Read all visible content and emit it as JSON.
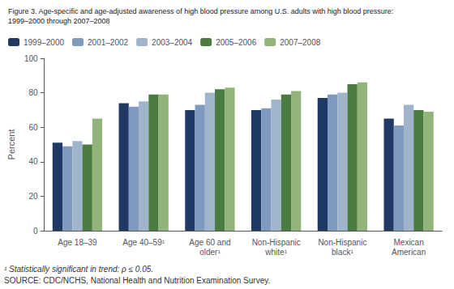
{
  "chart_data": {
    "type": "bar",
    "title": "Figure 3. Age-specific and age-adjusted awareness of high blood pressure among U.S. adults with high blood pressure:",
    "subtitle": "1999–2000 through 2007–2008",
    "ylabel": "Percent",
    "categories": [
      "Age 18–39",
      "Age 40–59¹",
      "Age 60 and\nolder¹",
      "Non-Hispanic\nwhite¹",
      "Non-Hispanic\nblack¹",
      "Mexican\nAmerican"
    ],
    "series": [
      {
        "name": "1999–2000",
        "color": "#1f3864",
        "values": [
          51,
          74,
          70,
          70,
          77,
          65
        ]
      },
      {
        "name": "2001–2002",
        "color": "#7f9abf",
        "values": [
          49,
          72,
          73,
          71,
          79,
          61
        ]
      },
      {
        "name": "2003–2004",
        "color": "#a0b4cc",
        "values": [
          52,
          75,
          80,
          76,
          80,
          73
        ]
      },
      {
        "name": "2005–2006",
        "color": "#4a7c3f",
        "values": [
          50,
          79,
          82,
          79,
          85,
          70
        ]
      },
      {
        "name": "2007–2008",
        "color": "#92b47a",
        "values": [
          65,
          79,
          83,
          81,
          86,
          69
        ]
      }
    ],
    "ylim": [
      0,
      100
    ],
    "yticks": [
      0,
      20,
      40,
      60,
      80,
      100
    ],
    "grid": false,
    "legend": "upper left",
    "annotations": [
      "¹ Statistically significant in trend: ρ ≤ 0.05.",
      "SOURCE: CDC/NCHS, National Health and Nutrition Examination Survey."
    ]
  }
}
